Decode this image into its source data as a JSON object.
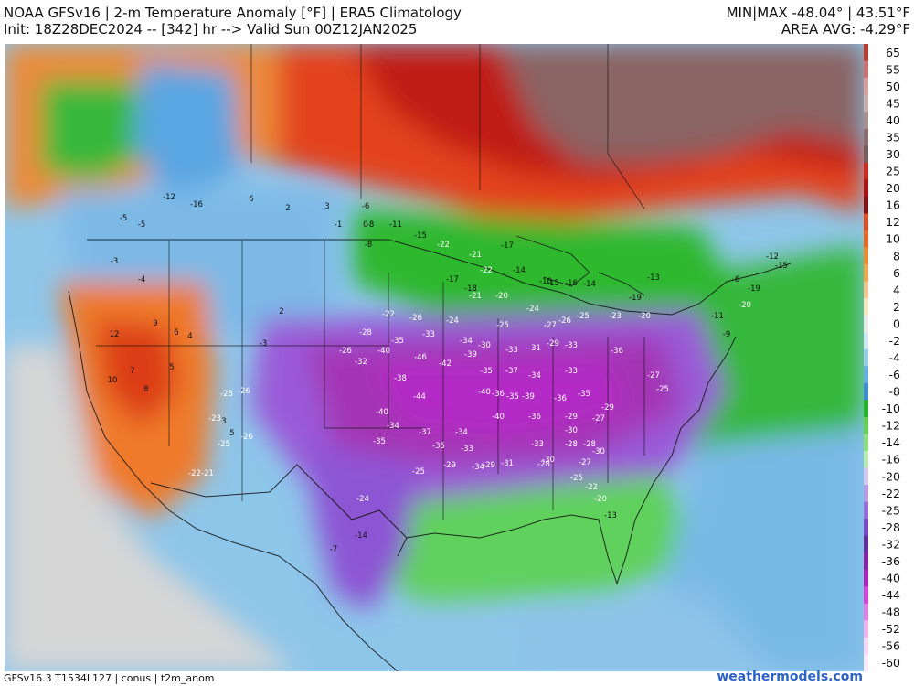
{
  "header": {
    "title_line1": "NOAA GFSv16 | 2-m Temperature Anomaly [°F] | ERA5 Climatology",
    "title_line2": "Init: 18Z28DEC2024 -- [342] hr --> Valid Sun 00Z12JAN2025",
    "minmax": "MIN|MAX -48.04° | 43.51°F",
    "area_avg": "AREA AVG: -4.29°F"
  },
  "footer": {
    "model_info": "GFSv16.3 T1534L127 | conus | t2m_anom",
    "site": "weathermodels.com"
  },
  "colorbar": {
    "labels": [
      "65",
      "55",
      "50",
      "45",
      "40",
      "35",
      "30",
      "25",
      "20",
      "16",
      "12",
      "10",
      "8",
      "6",
      "4",
      "2",
      "0",
      "-2",
      "-4",
      "-6",
      "-8",
      "-10",
      "-12",
      "-14",
      "-16",
      "-20",
      "-22",
      "-25",
      "-28",
      "-32",
      "-36",
      "-40",
      "-44",
      "-48",
      "-52",
      "-56",
      "-60"
    ],
    "colors": [
      "#c0392b",
      "#d07070",
      "#dda0a0",
      "#c9b0b0",
      "#a89090",
      "#8c6e6e",
      "#7a5a5a",
      "#d12a1a",
      "#b01010",
      "#8a1010",
      "#e24a1a",
      "#f0641e",
      "#f2892a",
      "#f3a446",
      "#f5c48a",
      "#f8e2c0",
      "#e8e8e8",
      "#cfe6f5",
      "#9cccec",
      "#66b0e6",
      "#3c8fd8",
      "#25b825",
      "#63d04a",
      "#8ee078",
      "#b8edac",
      "#d7c8f0",
      "#b89ae6",
      "#9a6bda",
      "#7b47c9",
      "#6a2b9e",
      "#8e1fa6",
      "#b51fc0",
      "#d93fd6",
      "#e57be6",
      "#f2b2f0",
      "#f7d5f6",
      "#fbe9fb"
    ]
  },
  "anomaly_labels": [
    {
      "t": "-5"
    },
    {
      "t": "-5"
    },
    {
      "t": "-3"
    },
    {
      "t": "-4"
    },
    {
      "t": "-12"
    },
    {
      "t": "-16"
    },
    {
      "t": "6"
    },
    {
      "t": "2"
    },
    {
      "t": "3"
    },
    {
      "t": "-6"
    },
    {
      "t": "-8"
    },
    {
      "t": "-1"
    },
    {
      "t": "0"
    },
    {
      "t": "-8"
    },
    {
      "t": "-11"
    },
    {
      "t": "-15"
    },
    {
      "t": "-22"
    },
    {
      "t": "-21"
    },
    {
      "t": "-17"
    },
    {
      "t": "-14"
    },
    {
      "t": "-16"
    },
    {
      "t": "-17"
    },
    {
      "t": "-18"
    },
    {
      "t": "-22"
    },
    {
      "t": "-21"
    },
    {
      "t": "-20"
    },
    {
      "t": "-15"
    },
    {
      "t": "-16"
    },
    {
      "t": "-14"
    },
    {
      "t": "-13"
    },
    {
      "t": "-19"
    },
    {
      "t": "-22"
    },
    {
      "t": "-26"
    },
    {
      "t": "-24"
    },
    {
      "t": "-25"
    },
    {
      "t": "-24"
    },
    {
      "t": "-27"
    },
    {
      "t": "-26"
    },
    {
      "t": "-25"
    },
    {
      "t": "-23"
    },
    {
      "t": "-20"
    },
    {
      "t": "-28"
    },
    {
      "t": "-32"
    },
    {
      "t": "-35"
    },
    {
      "t": "-33"
    },
    {
      "t": "-34"
    },
    {
      "t": "-30"
    },
    {
      "t": "-33"
    },
    {
      "t": "-31"
    },
    {
      "t": "-29"
    },
    {
      "t": "-33"
    },
    {
      "t": "-36"
    },
    {
      "t": "-26"
    },
    {
      "t": "-40"
    },
    {
      "t": "-46"
    },
    {
      "t": "-38"
    },
    {
      "t": "-42"
    },
    {
      "t": "-39"
    },
    {
      "t": "-35"
    },
    {
      "t": "-37"
    },
    {
      "t": "-34"
    },
    {
      "t": "-33"
    },
    {
      "t": "-27"
    },
    {
      "t": "-25"
    },
    {
      "t": "-28"
    },
    {
      "t": "-26"
    },
    {
      "t": "-40"
    },
    {
      "t": "-44"
    },
    {
      "t": "-40"
    },
    {
      "t": "-36"
    },
    {
      "t": "-35"
    },
    {
      "t": "-39"
    },
    {
      "t": "-36"
    },
    {
      "t": "-35"
    },
    {
      "t": "-29"
    },
    {
      "t": "-23"
    },
    {
      "t": "-34"
    },
    {
      "t": "-37"
    },
    {
      "t": "-34"
    },
    {
      "t": "-40"
    },
    {
      "t": "-36"
    },
    {
      "t": "-29"
    },
    {
      "t": "-27"
    },
    {
      "t": "-28"
    },
    {
      "t": "-25"
    },
    {
      "t": "-26"
    },
    {
      "t": "-35"
    },
    {
      "t": "-35"
    },
    {
      "t": "-33"
    },
    {
      "t": "-34"
    },
    {
      "t": "-33"
    },
    {
      "t": "-30"
    },
    {
      "t": "-28"
    },
    {
      "t": "-27"
    },
    {
      "t": "-30"
    },
    {
      "t": "-30"
    },
    {
      "t": "-22"
    },
    {
      "t": "-21"
    },
    {
      "t": "-25"
    },
    {
      "t": "-29"
    },
    {
      "t": "-29"
    },
    {
      "t": "-31"
    },
    {
      "t": "-28"
    },
    {
      "t": "-25"
    },
    {
      "t": "-22"
    },
    {
      "t": "-20"
    },
    {
      "t": "-13"
    },
    {
      "t": "-24"
    },
    {
      "t": "-14"
    },
    {
      "t": "-7"
    },
    {
      "t": "12"
    },
    {
      "t": "10"
    },
    {
      "t": "9"
    },
    {
      "t": "7"
    },
    {
      "t": "8"
    },
    {
      "t": "6"
    },
    {
      "t": "4"
    },
    {
      "t": "5"
    },
    {
      "t": "3"
    },
    {
      "t": "-3"
    },
    {
      "t": "2"
    },
    {
      "t": "5"
    },
    {
      "t": "-12"
    },
    {
      "t": "-15"
    },
    {
      "t": "-19"
    },
    {
      "t": "-20"
    },
    {
      "t": "-11"
    },
    {
      "t": "-9"
    },
    {
      "t": "-6"
    }
  ]
}
